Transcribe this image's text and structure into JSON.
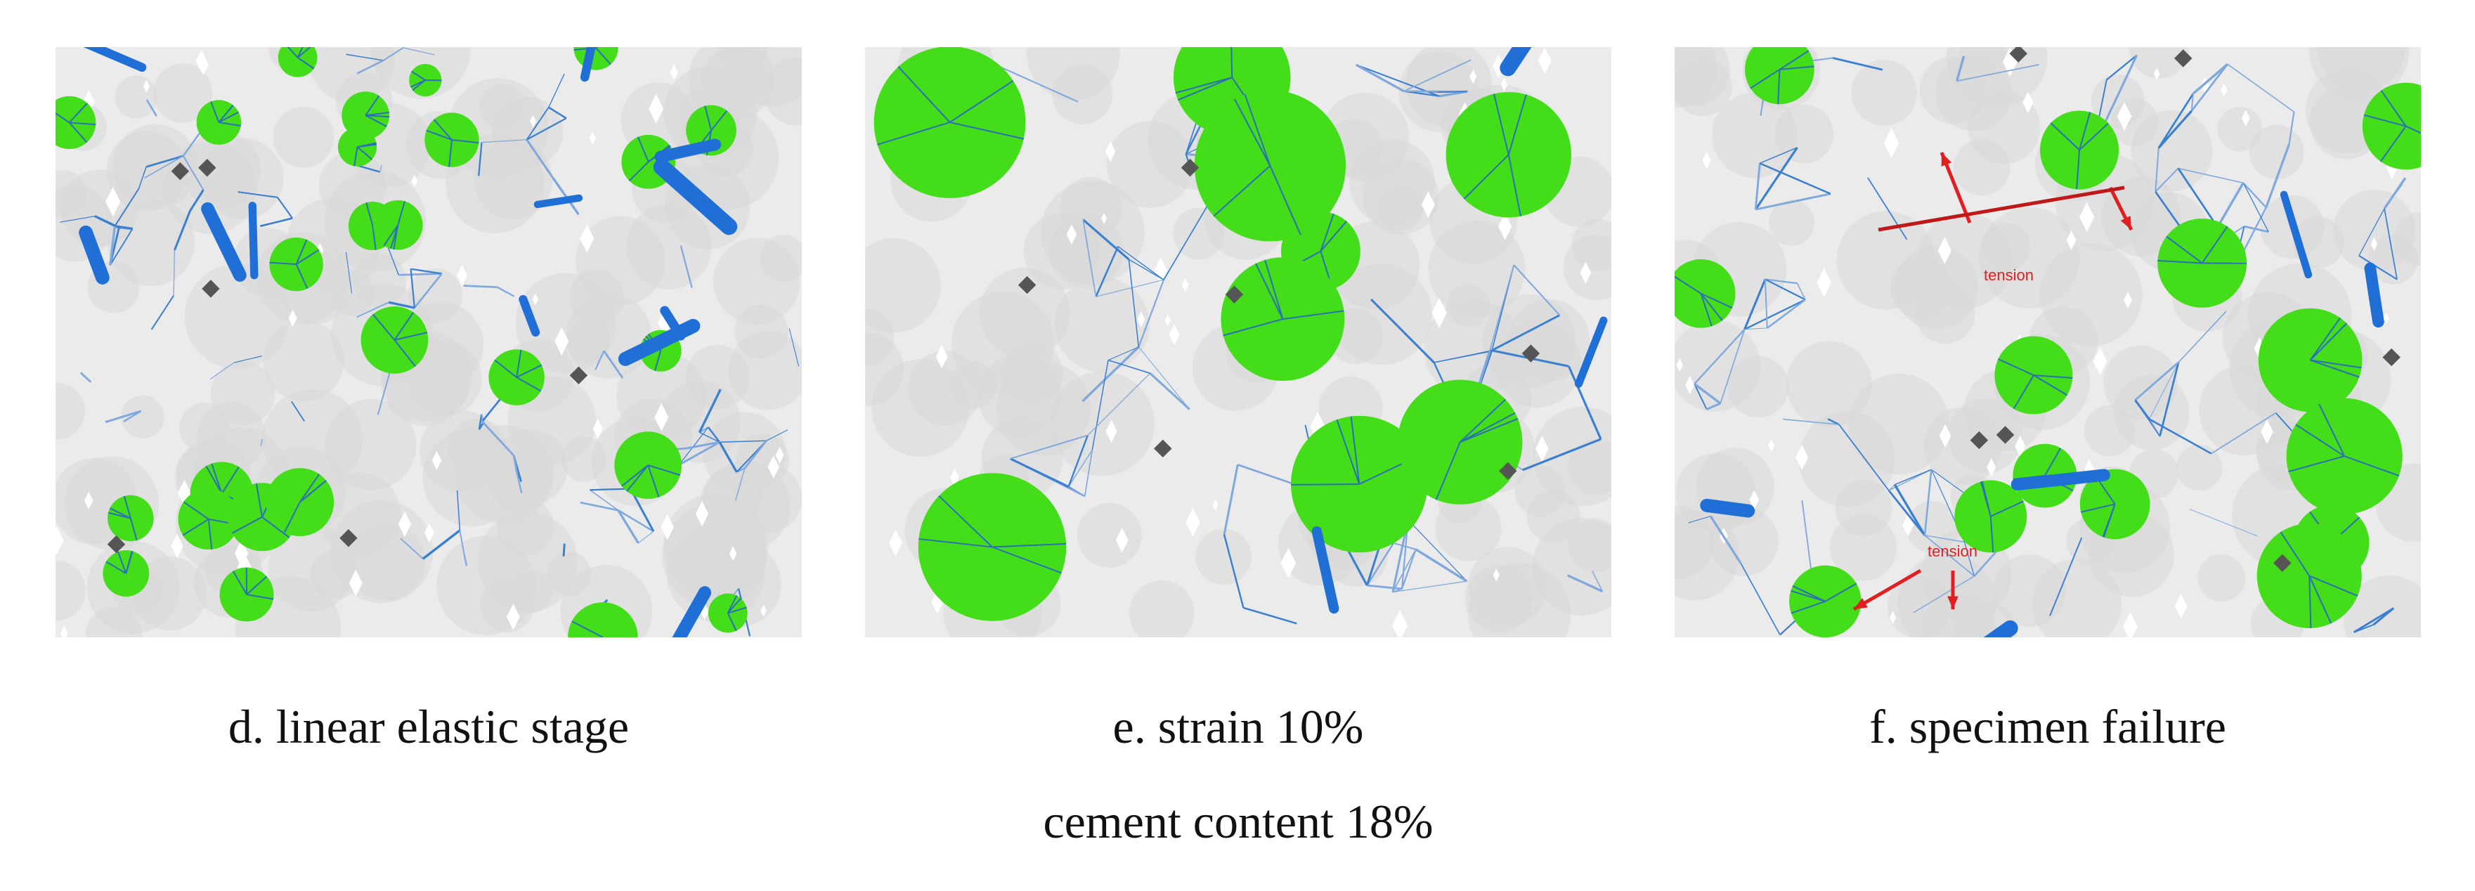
{
  "panels": [
    {
      "caption": "d. linear elastic stage"
    },
    {
      "caption": "e. strain 10%"
    },
    {
      "caption": "f. specimen failure",
      "annotations": [
        "tension",
        "tension"
      ]
    }
  ],
  "caption": "cement content 18%"
}
